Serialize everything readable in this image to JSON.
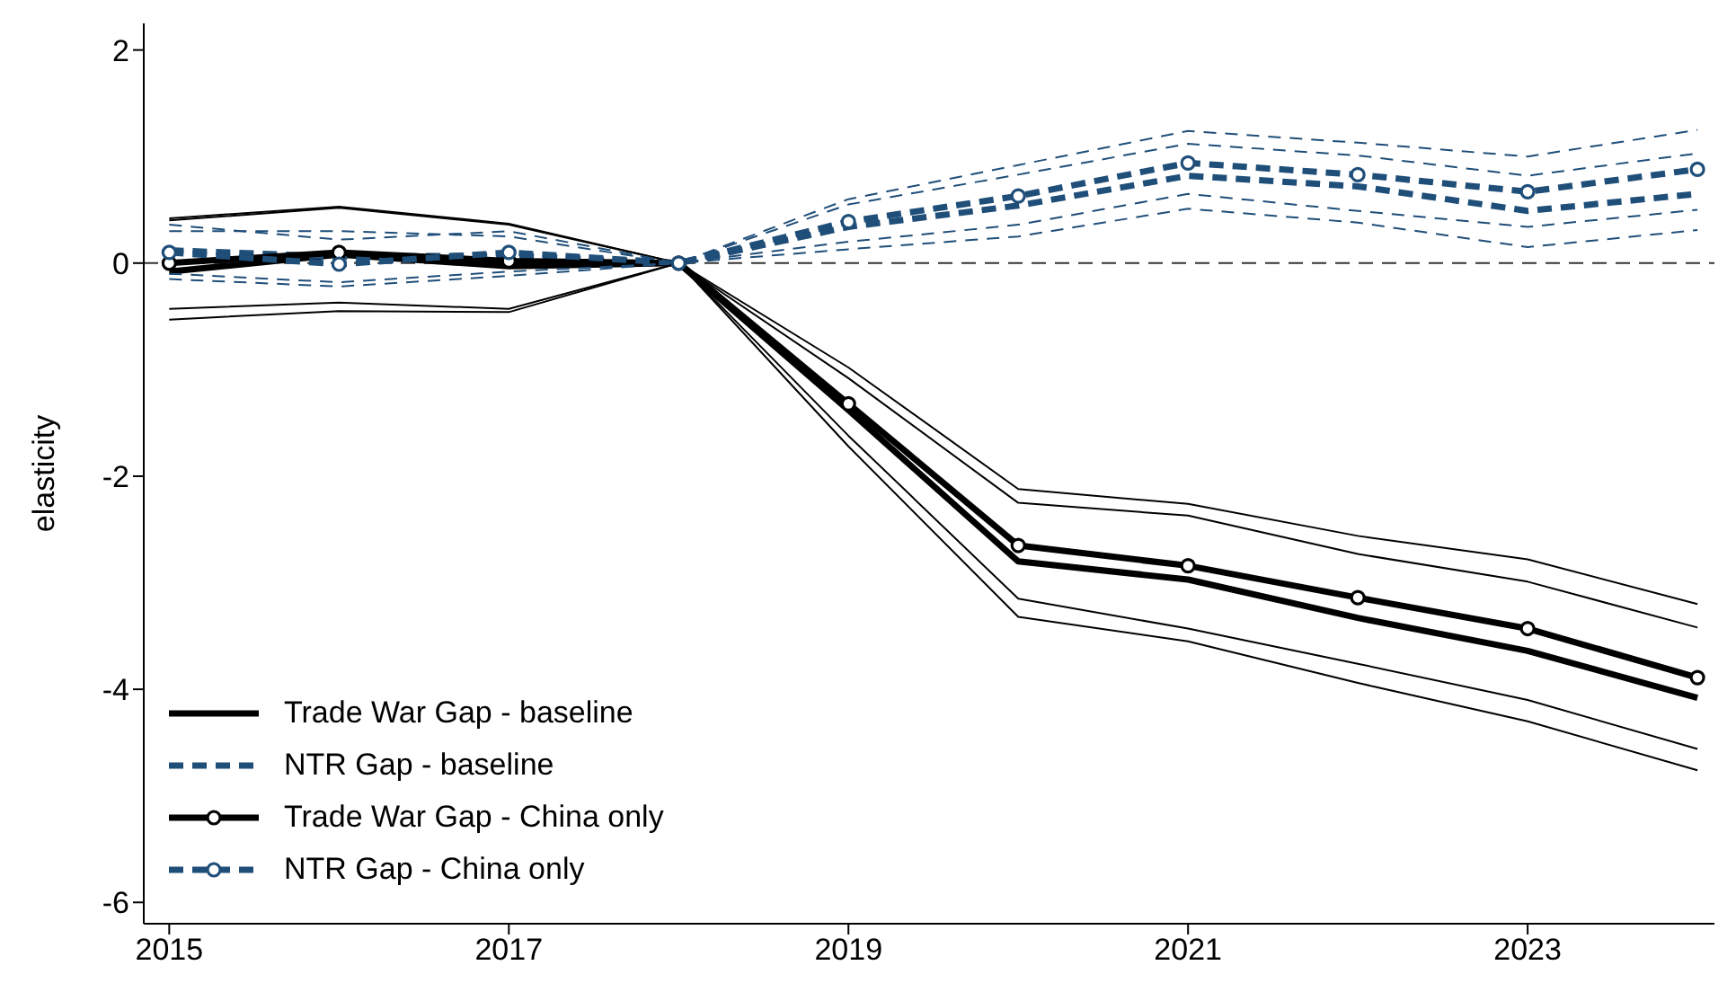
{
  "chart_data": {
    "type": "line",
    "ylabel": "elasticity",
    "x": [
      2015,
      2016,
      2017,
      2018,
      2019,
      2020,
      2021,
      2022,
      2023,
      2024
    ],
    "xlim": [
      2014.85,
      2024.1
    ],
    "xticks": [
      2015,
      2017,
      2019,
      2021,
      2023
    ],
    "ylim": [
      -6.2,
      2.25
    ],
    "yticks": [
      -6,
      -4,
      -2,
      0,
      2
    ],
    "grid": false,
    "legend": "bottom left",
    "ref_lines": [
      {
        "axis": "y",
        "value": 0,
        "color": "#333333",
        "line_style": "dashed"
      }
    ],
    "series": [
      {
        "name": "Trade War Gap - baseline",
        "color": "#000000",
        "line_style": "solid",
        "marker": "none",
        "values": [
          -0.08,
          0.08,
          -0.03,
          0,
          -1.38,
          -2.8,
          -2.97,
          -3.33,
          -3.64,
          -4.08
        ]
      },
      {
        "name": "NTR Gap - baseline",
        "color": "#1f4e79",
        "line_style": "dashed",
        "marker": "none",
        "values": [
          0.12,
          0.06,
          0.07,
          0,
          0.34,
          0.54,
          0.82,
          0.72,
          0.49,
          0.65
        ]
      },
      {
        "name": "Trade War Gap - China only",
        "color": "#000000",
        "line_style": "solid",
        "marker": "circle",
        "values": [
          0,
          0.1,
          0.02,
          0,
          -1.32,
          -2.65,
          -2.84,
          -3.14,
          -3.43,
          -3.89
        ]
      },
      {
        "name": "NTR Gap - China only",
        "color": "#1f4e79",
        "line_style": "dashed",
        "marker": "circle",
        "values": [
          0.1,
          -0.01,
          0.1,
          0,
          0.39,
          0.63,
          0.94,
          0.83,
          0.67,
          0.88
        ]
      },
      {
        "color": "#000000",
        "line_style": "solid",
        "marker": "none",
        "values": [
          -0.53,
          -0.45,
          -0.46,
          0,
          -1.72,
          -3.32,
          -3.55,
          -3.94,
          -4.3,
          -4.76
        ]
      },
      {
        "color": "#000000",
        "line_style": "solid",
        "marker": "none",
        "values": [
          0.4,
          0.52,
          0.36,
          0,
          -1.08,
          -2.25,
          -2.37,
          -2.73,
          -2.99,
          -3.42
        ]
      },
      {
        "color": "#1f4e79",
        "line_style": "dashed",
        "marker": "none",
        "values": [
          -0.15,
          -0.22,
          -0.12,
          0,
          0.13,
          0.25,
          0.51,
          0.38,
          0.15,
          0.31
        ]
      },
      {
        "color": "#1f4e79",
        "line_style": "dashed",
        "marker": "none",
        "values": [
          0.3,
          0.3,
          0.25,
          0,
          0.55,
          0.83,
          1.12,
          1.01,
          0.82,
          1.03
        ]
      },
      {
        "color": "#000000",
        "line_style": "solid",
        "marker": "none",
        "values": [
          -0.43,
          -0.37,
          -0.43,
          0,
          -1.62,
          -3.15,
          -3.43,
          -3.76,
          -4.1,
          -4.56
        ]
      },
      {
        "color": "#000000",
        "line_style": "solid",
        "marker": "none",
        "values": [
          0.42,
          0.53,
          0.37,
          0,
          -0.98,
          -2.12,
          -2.26,
          -2.56,
          -2.78,
          -3.2
        ]
      },
      {
        "color": "#1f4e79",
        "line_style": "dashed",
        "marker": "none",
        "values": [
          -0.1,
          -0.18,
          -0.08,
          0,
          0.2,
          0.36,
          0.65,
          0.49,
          0.34,
          0.5
        ]
      },
      {
        "color": "#1f4e79",
        "line_style": "dashed",
        "marker": "none",
        "values": [
          0.36,
          0.22,
          0.3,
          0,
          0.6,
          0.92,
          1.24,
          1.13,
          1.0,
          1.25
        ]
      }
    ]
  }
}
